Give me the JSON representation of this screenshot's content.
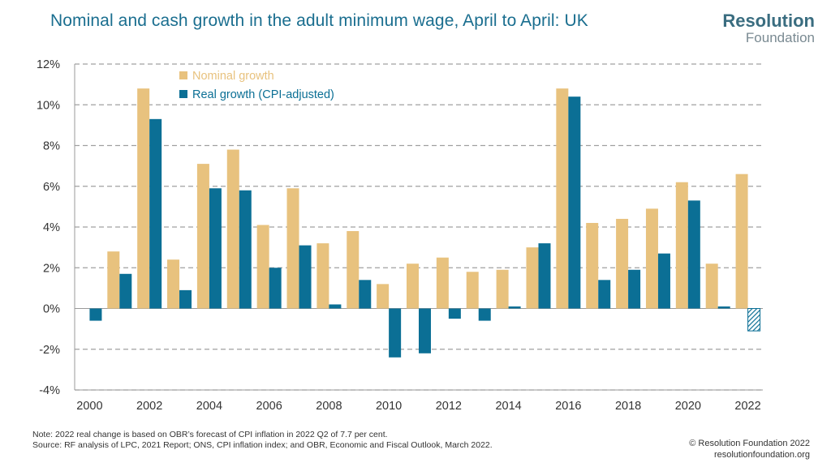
{
  "title": "Nominal and cash growth in the adult minimum wage, April to April: UK",
  "logo": {
    "line1": "Resolution",
    "line2": "Foundation"
  },
  "footer": {
    "note": "Note: 2022 real change is based on OBR’s forecast of CPI inflation in 2022 Q2 of 7.7 per cent.",
    "source": "Source: RF analysis of LPC, 2021 Report; ONS, CPI inflation index; and OBR, Economic and Fiscal Outlook, March 2022.",
    "copyright": "© Resolution Foundation 2022",
    "website": "resolutionfoundation.org"
  },
  "colors": {
    "nominal": "#e8c27e",
    "real": "#0b6f95",
    "grid": "#a0a0a0",
    "title": "#1a6e8f"
  },
  "chart_data": {
    "type": "bar",
    "title": "Nominal and cash growth in the adult minimum wage, April to April: UK",
    "xlabel": "",
    "ylabel": "",
    "ylim": [
      -4,
      12
    ],
    "y_ticks": [
      12,
      10,
      8,
      6,
      4,
      2,
      0,
      -2,
      -4
    ],
    "y_tick_labels": [
      "12%",
      "10%",
      "8%",
      "6%",
      "4%",
      "2%",
      "0%",
      "-2%",
      "-4%"
    ],
    "x_tick_labels": [
      "2000",
      "2002",
      "2004",
      "2006",
      "2008",
      "2010",
      "2012",
      "2014",
      "2016",
      "2018",
      "2020",
      "2022"
    ],
    "categories": [
      2000,
      2001,
      2002,
      2003,
      2004,
      2005,
      2006,
      2007,
      2008,
      2009,
      2010,
      2011,
      2012,
      2013,
      2014,
      2015,
      2016,
      2017,
      2018,
      2019,
      2020,
      2021,
      2022
    ],
    "grid": true,
    "legend_position": "top-left",
    "series": [
      {
        "name": "Nominal growth",
        "values": [
          null,
          2.8,
          10.8,
          2.4,
          7.1,
          7.8,
          4.1,
          5.9,
          3.2,
          3.8,
          1.2,
          2.2,
          2.5,
          1.8,
          1.9,
          3.0,
          10.8,
          4.2,
          4.4,
          4.9,
          6.2,
          2.2,
          6.6
        ]
      },
      {
        "name": "Real growth (CPI-adjusted)",
        "values": [
          -0.6,
          1.7,
          9.3,
          0.9,
          5.9,
          5.8,
          2.0,
          3.1,
          0.2,
          1.4,
          -2.4,
          -2.2,
          -0.5,
          -0.6,
          0.1,
          3.2,
          10.4,
          1.4,
          1.9,
          2.7,
          5.3,
          0.1,
          -1.1
        ],
        "note_hatched_last": true
      }
    ]
  }
}
